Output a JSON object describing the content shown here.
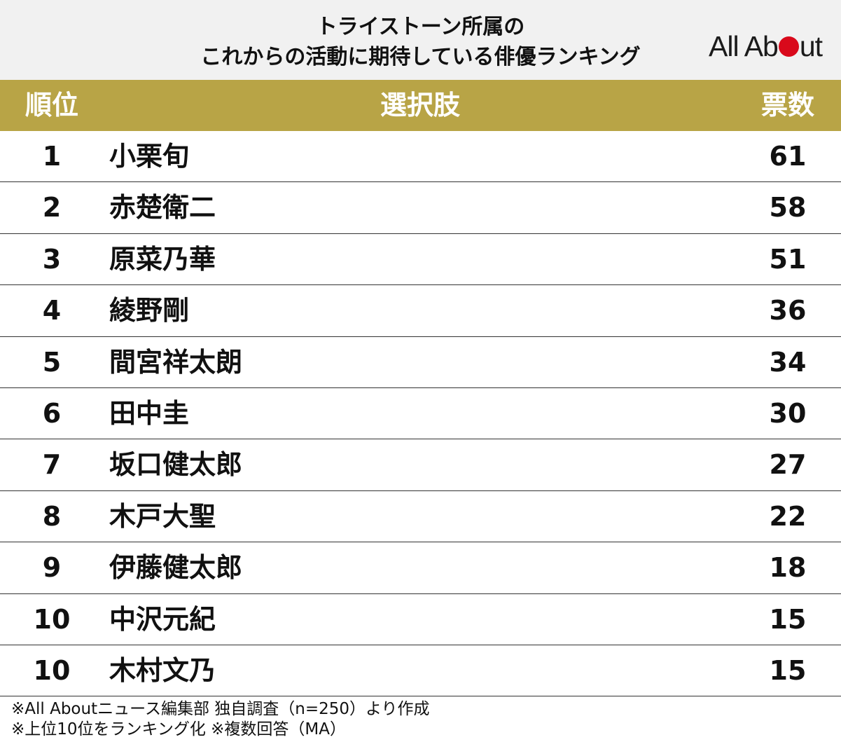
{
  "title": {
    "line1": "トライストーン所属の",
    "line2": "これからの活動に期待している俳優ランキング"
  },
  "logo": {
    "text_before": "All Ab",
    "text_after": "ut",
    "dot_color": "#d9091b"
  },
  "colors": {
    "header_bg": "#b8a446",
    "title_bg": "#f1f1f1"
  },
  "chart_data": {
    "type": "table",
    "columns": [
      "順位",
      "選択肢",
      "票数"
    ],
    "rows": [
      {
        "rank": "1",
        "name": "小栗旬",
        "votes": 61
      },
      {
        "rank": "2",
        "name": "赤楚衛二",
        "votes": 58
      },
      {
        "rank": "3",
        "name": "原菜乃華",
        "votes": 51
      },
      {
        "rank": "4",
        "name": "綾野剛",
        "votes": 36
      },
      {
        "rank": "5",
        "name": "間宮祥太朗",
        "votes": 34
      },
      {
        "rank": "6",
        "name": "田中圭",
        "votes": 30
      },
      {
        "rank": "7",
        "name": "坂口健太郎",
        "votes": 27
      },
      {
        "rank": "8",
        "name": "木戸大聖",
        "votes": 22
      },
      {
        "rank": "9",
        "name": "伊藤健太郎",
        "votes": 18
      },
      {
        "rank": "10",
        "name": "中沢元紀",
        "votes": 15
      },
      {
        "rank": "10",
        "name": "木村文乃",
        "votes": 15
      }
    ]
  },
  "notes": {
    "line1": "※All Aboutニュース編集部 独自調査（n=250）より作成",
    "line2": "※上位10位をランキング化 ※複数回答（MA）"
  }
}
